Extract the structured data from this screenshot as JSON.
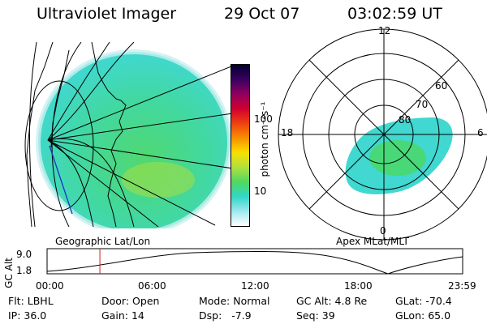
{
  "header": {
    "instrument": "Ultraviolet Imager",
    "date": "29 Oct 07",
    "time": "03:02:59 UT"
  },
  "colors": {
    "aurora_main": "#38dcd0",
    "aurora_bright": "#40d878",
    "aurora_yellow": "#a8e040",
    "time_marker": "#d02020",
    "grid": "#000000"
  },
  "colorbar": {
    "label": "photon cm⁻²s⁻¹",
    "ticks": [
      "100",
      "10"
    ],
    "stops": [
      "#000030",
      "#3a0060",
      "#900060",
      "#d00030",
      "#f04010",
      "#f89000",
      "#f8e000",
      "#b0e040",
      "#50d860",
      "#30d8c8",
      "#a0e8f0",
      "#ffffff"
    ]
  },
  "left_panel": {
    "caption": "Geographic Lat/Lon"
  },
  "right_panel": {
    "caption": "Apex MLat/MLT",
    "mlt_labels": {
      "top": "12",
      "left": "18",
      "right": "6",
      "bottom": "0"
    },
    "lat_labels": [
      "60",
      "70",
      "80"
    ]
  },
  "altitude_plot": {
    "ylabel": "GC Alt",
    "yticks": [
      "9.0",
      "1.8"
    ],
    "xticks": [
      "00:00",
      "06:00",
      "12:00",
      "18:00",
      "23:59"
    ],
    "current_time_hours": 3.05
  },
  "info": {
    "row1": [
      {
        "label": "Flt:",
        "value": "LBHL"
      },
      {
        "label": "Door:",
        "value": "Open"
      },
      {
        "label": "Mode:",
        "value": "Normal"
      },
      {
        "label": "GC Alt:",
        "value": "4.8 Re"
      },
      {
        "label": "GLat:",
        "value": "-70.4"
      }
    ],
    "row2": [
      {
        "label": "IP:",
        "value": "36.0"
      },
      {
        "label": "Gain:",
        "value": "14"
      },
      {
        "label": "Dsp:",
        "value": "  -7.9"
      },
      {
        "label": "Seq:",
        "value": "39"
      },
      {
        "label": "GLon:",
        "value": "65.0"
      }
    ]
  }
}
